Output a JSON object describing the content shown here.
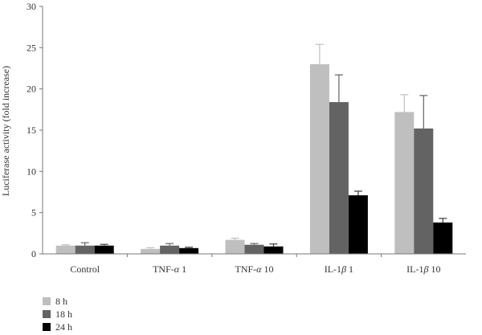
{
  "chart_data": {
    "type": "bar",
    "title": "",
    "xlabel": "",
    "ylabel": "Luciferase activity (fold increase)",
    "ylim": [
      0,
      30
    ],
    "yticks": [
      0,
      5,
      10,
      15,
      20,
      25,
      30
    ],
    "grid": false,
    "legend_position": "bottom-left",
    "categories": [
      {
        "prefix": "Control",
        "greek": "",
        "suffix": ""
      },
      {
        "prefix": "TNF-",
        "greek": "α",
        "suffix": " 1"
      },
      {
        "prefix": "TNF-",
        "greek": "α",
        "suffix": " 10"
      },
      {
        "prefix": "IL-1",
        "greek": "β",
        "suffix": " 1"
      },
      {
        "prefix": "IL-1",
        "greek": "β",
        "suffix": " 10"
      }
    ],
    "series": [
      {
        "name": "8 h",
        "color": "#bfbfbf",
        "values": [
          1.0,
          0.6,
          1.7,
          23.0,
          17.2
        ],
        "errors": [
          0.1,
          0.15,
          0.2,
          2.4,
          2.1
        ]
      },
      {
        "name": "18 h",
        "color": "#636363",
        "values": [
          1.0,
          1.0,
          1.1,
          18.4,
          15.2
        ],
        "errors": [
          0.35,
          0.25,
          0.15,
          3.3,
          4.0
        ]
      },
      {
        "name": "24 h",
        "color": "#000000",
        "values": [
          1.0,
          0.7,
          0.9,
          7.1,
          3.8
        ],
        "errors": [
          0.15,
          0.1,
          0.3,
          0.5,
          0.5
        ]
      }
    ]
  }
}
